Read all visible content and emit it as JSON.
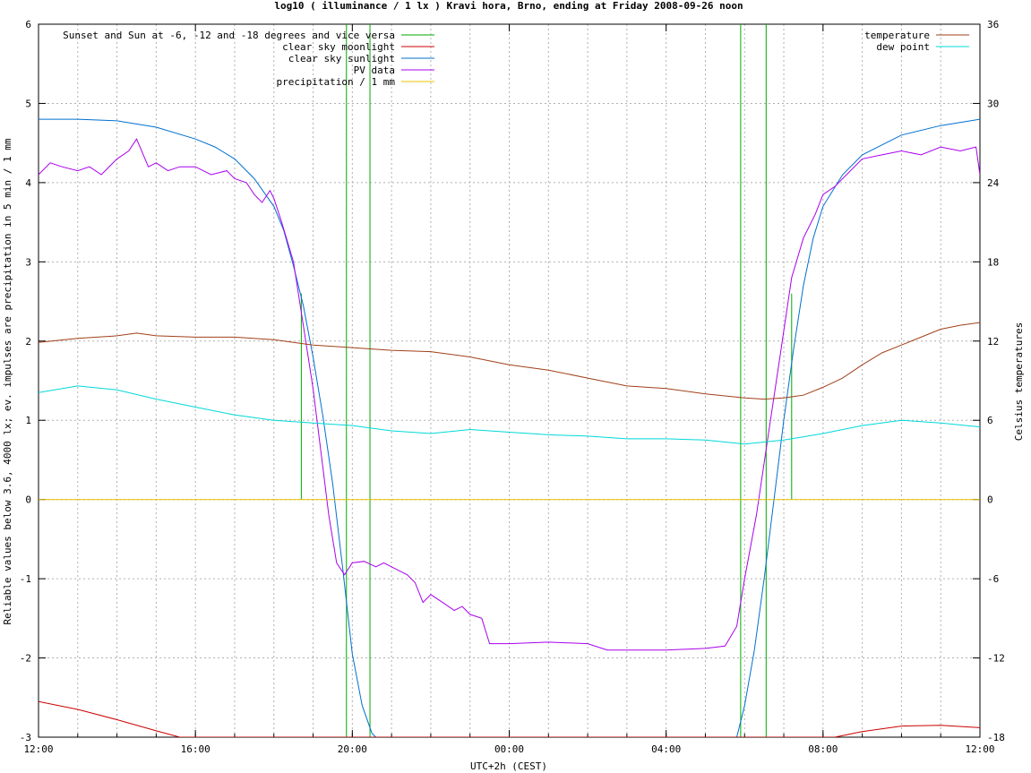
{
  "chart_data": {
    "type": "line",
    "title": "log10 ( illuminance / 1 lx ) Kravi hora, Brno, ending at Friday 2008-09-26 noon",
    "xlabel": "UTC+2h (CEST)",
    "ylabel": "Reliable values below 3.6, 4000 lx; ev. impulses are precipitation in 5 min / 1 mm",
    "y2label": "Celsius temperatures",
    "x_ticks": [
      "12:00",
      "16:00",
      "20:00",
      "00:00",
      "04:00",
      "08:00",
      "12:00"
    ],
    "x_range_hours": [
      12,
      36
    ],
    "ylim": [
      -3,
      6
    ],
    "y_ticks": [
      "-3",
      "-2",
      "-1",
      "0",
      "1",
      "2",
      "3",
      "4",
      "5",
      "6"
    ],
    "y2lim": [
      -18,
      36
    ],
    "y2_ticks": [
      "-18",
      "-12",
      "-6",
      "0",
      "6",
      "12",
      "18",
      "24",
      "30",
      "36"
    ],
    "grid": true,
    "legend_left": [
      {
        "name": "Sunset and Sun at -6, -12 and -18 degrees and vice versa",
        "color": "#00aa00"
      },
      {
        "name": "clear sky moonlight",
        "color": "#cc0000"
      },
      {
        "name": "clear sky sunlight",
        "color": "#0070d0"
      },
      {
        "name": "PV data",
        "color": "#aa00ee"
      },
      {
        "name": "precipitation / 1 mm",
        "color": "#e8c000"
      }
    ],
    "legend_right": [
      {
        "name": "temperature",
        "color": "#a0401a"
      },
      {
        "name": "dew point",
        "color": "#00d8d8"
      }
    ],
    "series": [
      {
        "name": "clear sky sunlight",
        "axis": "left",
        "x": [
          12,
          13,
          14,
          15,
          16,
          16.5,
          17,
          17.5,
          18,
          18.25,
          18.5,
          18.75,
          19,
          19.25,
          19.5,
          19.75,
          20,
          20.25,
          20.5,
          20.6,
          29.8,
          30,
          30.25,
          30.5,
          30.75,
          31,
          31.25,
          31.5,
          31.75,
          32,
          32.5,
          33,
          34,
          35,
          36
        ],
        "y": [
          4.8,
          4.8,
          4.78,
          4.7,
          4.55,
          4.45,
          4.3,
          4.05,
          3.7,
          3.4,
          2.95,
          2.45,
          1.8,
          1.05,
          0.2,
          -0.85,
          -1.95,
          -2.6,
          -2.95,
          -3.0,
          -3.0,
          -2.6,
          -1.9,
          -1.0,
          0.0,
          1.0,
          1.9,
          2.7,
          3.3,
          3.7,
          4.1,
          4.35,
          4.6,
          4.72,
          4.8
        ]
      },
      {
        "name": "PV data",
        "axis": "left",
        "x": [
          12,
          12.3,
          12.6,
          13,
          13.3,
          13.6,
          14,
          14.3,
          14.5,
          14.8,
          15,
          15.3,
          15.6,
          16,
          16.4,
          16.8,
          17,
          17.3,
          17.5,
          17.7,
          17.9,
          18,
          18.2,
          18.5,
          18.75,
          19,
          19.2,
          19.4,
          19.6,
          19.8,
          20,
          20.3,
          20.6,
          20.8,
          21,
          21.2,
          21.4,
          21.6,
          21.8,
          22,
          22.3,
          22.6,
          22.8,
          23,
          23.3,
          23.5,
          24,
          25,
          26,
          26.5,
          27,
          28,
          29,
          29.5,
          29.8,
          30,
          30.3,
          30.6,
          30.9,
          31.2,
          31.5,
          31.8,
          32,
          32.3,
          32.6,
          33,
          33.5,
          34,
          34.5,
          35,
          35.5,
          35.9,
          36
        ],
        "y": [
          4.1,
          4.25,
          4.2,
          4.15,
          4.2,
          4.1,
          4.3,
          4.4,
          4.55,
          4.2,
          4.25,
          4.15,
          4.2,
          4.2,
          4.1,
          4.15,
          4.05,
          4.0,
          3.85,
          3.75,
          3.9,
          3.8,
          3.5,
          3.0,
          2.2,
          1.4,
          0.6,
          -0.2,
          -0.8,
          -0.95,
          -0.8,
          -0.78,
          -0.85,
          -0.8,
          -0.85,
          -0.9,
          -0.95,
          -1.05,
          -1.3,
          -1.2,
          -1.3,
          -1.4,
          -1.35,
          -1.45,
          -1.5,
          -1.82,
          -1.82,
          -1.8,
          -1.82,
          -1.9,
          -1.9,
          -1.9,
          -1.88,
          -1.85,
          -1.6,
          -1.0,
          -0.2,
          0.8,
          1.8,
          2.8,
          3.3,
          3.6,
          3.85,
          3.95,
          4.1,
          4.3,
          4.35,
          4.4,
          4.35,
          4.45,
          4.4,
          4.45,
          4.1
        ]
      },
      {
        "name": "clear sky moonlight",
        "axis": "left",
        "x": [
          12,
          13,
          14,
          15,
          15.6,
          32.3,
          33,
          34,
          35,
          36
        ],
        "y": [
          -2.55,
          -2.65,
          -2.78,
          -2.92,
          -3.0,
          -3.0,
          -2.93,
          -2.86,
          -2.85,
          -2.88
        ]
      },
      {
        "name": "precipitation / 1 mm",
        "axis": "left",
        "x": [
          12,
          36
        ],
        "y": [
          0,
          0
        ]
      },
      {
        "name": "temperature",
        "axis": "right",
        "x": [
          12,
          13,
          14,
          14.5,
          15,
          16,
          17,
          18,
          19,
          20,
          21,
          22,
          23,
          24,
          25,
          26,
          27,
          28,
          29,
          30,
          30.5,
          31,
          31.5,
          32,
          32.5,
          33,
          33.5,
          34,
          34.5,
          35,
          35.5,
          36
        ],
        "y": [
          11.9,
          12.2,
          12.4,
          12.6,
          12.4,
          12.3,
          12.3,
          12.1,
          11.7,
          11.5,
          11.3,
          11.2,
          10.8,
          10.2,
          9.8,
          9.2,
          8.6,
          8.4,
          8.0,
          7.7,
          7.6,
          7.7,
          7.9,
          8.5,
          9.2,
          10.2,
          11.1,
          11.7,
          12.3,
          12.9,
          13.2,
          13.4
        ]
      },
      {
        "name": "dew point",
        "axis": "right",
        "x": [
          12,
          13,
          14,
          15,
          16,
          17,
          18,
          19,
          20,
          21,
          22,
          23,
          24,
          25,
          26,
          27,
          28,
          29,
          30,
          31,
          32,
          33,
          34,
          35,
          36
        ],
        "y": [
          8.1,
          8.6,
          8.3,
          7.6,
          7.0,
          6.4,
          6.0,
          5.8,
          5.6,
          5.2,
          5.0,
          5.3,
          5.1,
          4.9,
          4.8,
          4.6,
          4.6,
          4.5,
          4.2,
          4.5,
          5.0,
          5.6,
          6.0,
          5.8,
          5.5
        ]
      }
    ],
    "impulses": {
      "name": "Sunset and Sun at -6, -12 and -18 degrees and vice versa",
      "x": [
        18.7,
        19.85,
        20.45,
        29.9,
        30.55,
        31.2
      ],
      "y": [
        2.6,
        0,
        0,
        0,
        0,
        2.6
      ]
    }
  }
}
